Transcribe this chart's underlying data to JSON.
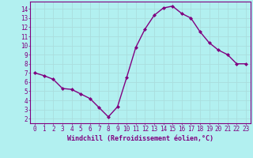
{
  "x": [
    0,
    1,
    2,
    3,
    4,
    5,
    6,
    7,
    8,
    9,
    10,
    11,
    12,
    13,
    14,
    15,
    16,
    17,
    18,
    19,
    20,
    21,
    22,
    23
  ],
  "y": [
    7.0,
    6.7,
    6.3,
    5.3,
    5.2,
    4.7,
    4.2,
    3.2,
    2.2,
    3.3,
    6.5,
    9.8,
    11.8,
    13.3,
    14.1,
    14.3,
    13.5,
    13.0,
    11.5,
    10.3,
    9.5,
    9.0,
    8.0,
    8.0
  ],
  "line_color": "#800080",
  "marker": "D",
  "marker_size": 2,
  "bg_color": "#b2f0f0",
  "grid_color": "#aadddd",
  "xlabel": "Windchill (Refroidissement éolien,°C)",
  "xlim": [
    -0.5,
    23.5
  ],
  "ylim": [
    1.5,
    14.8
  ],
  "xticks": [
    0,
    1,
    2,
    3,
    4,
    5,
    6,
    7,
    8,
    9,
    10,
    11,
    12,
    13,
    14,
    15,
    16,
    17,
    18,
    19,
    20,
    21,
    22,
    23
  ],
  "yticks": [
    2,
    3,
    4,
    5,
    6,
    7,
    8,
    9,
    10,
    11,
    12,
    13,
    14
  ],
  "tick_color": "#800080",
  "label_color": "#800080",
  "font_size_xlabel": 6,
  "font_size_ticks": 5.5,
  "linewidth": 1.0
}
